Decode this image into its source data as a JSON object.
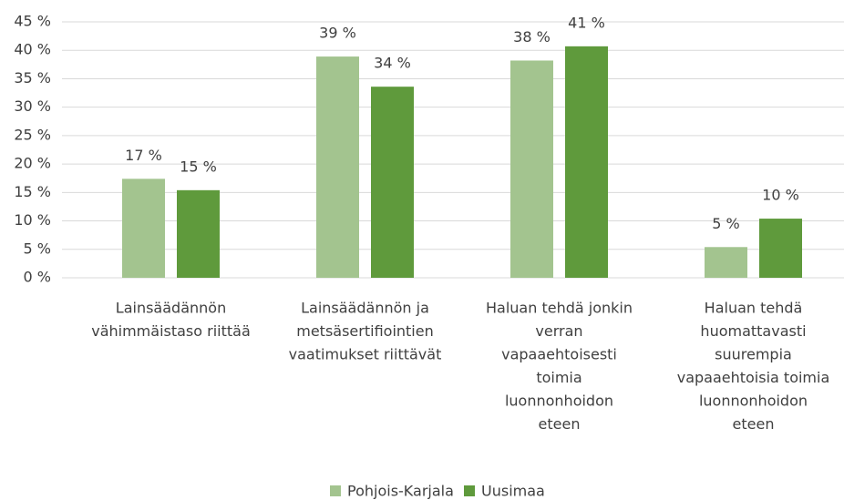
{
  "chart_data": {
    "type": "bar",
    "categories": [
      [
        "Lainsäädännön",
        "vähimmäistaso riittää"
      ],
      [
        "Lainsäädännön ja",
        "metsäsertifiointien",
        "vaatimukset riittävät"
      ],
      [
        "Haluan tehdä jonkin",
        "verran",
        "vapaaehtoisesti",
        "toimia",
        "luonnonhoidon",
        "eteen"
      ],
      [
        "Haluan tehdä",
        "huomattavasti",
        "suurempia",
        "vapaaehtoisia toimia",
        "luonnonhoidon",
        "eteen"
      ]
    ],
    "series": [
      {
        "name": "Pohjois-Karjala",
        "color": "#a3c48f",
        "values": [
          17.4,
          38.9,
          38.2,
          5.4
        ],
        "value_labels": [
          "17 %",
          "39 %",
          "38 %",
          "5 %"
        ]
      },
      {
        "name": "Uusimaa",
        "color": "#5f9a3c",
        "values": [
          15.4,
          33.6,
          40.7,
          10.4
        ],
        "value_labels": [
          "15 %",
          "34 %",
          "41 %",
          "10 %"
        ]
      }
    ],
    "ylim": [
      0,
      45
    ],
    "yticks": [
      {
        "value": 0,
        "label": "0 %"
      },
      {
        "value": 5,
        "label": "5 %"
      },
      {
        "value": 10,
        "label": "10 %"
      },
      {
        "value": 15,
        "label": "15 %"
      },
      {
        "value": 20,
        "label": "20 %"
      },
      {
        "value": 25,
        "label": "25 %"
      },
      {
        "value": 30,
        "label": "30 %"
      },
      {
        "value": 35,
        "label": "35 %"
      },
      {
        "value": 40,
        "label": "40 %"
      },
      {
        "value": 45,
        "label": "45 %"
      }
    ],
    "grid": true,
    "legend": "bottom"
  }
}
